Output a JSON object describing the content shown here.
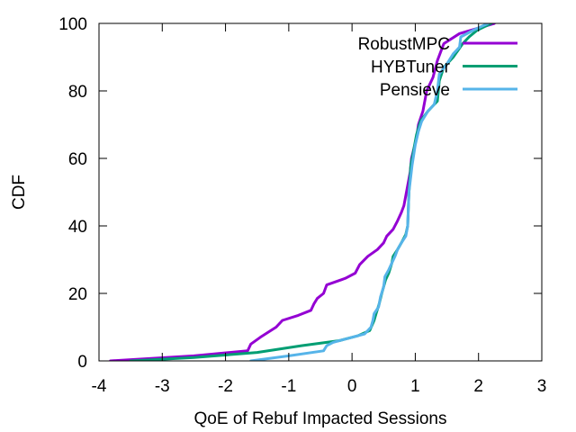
{
  "chart_data": {
    "type": "line",
    "title": "",
    "xlabel": "QoE of Rebuf Impacted Sessions",
    "ylabel": "CDF",
    "xlim": [
      -4,
      3
    ],
    "ylim": [
      0,
      100
    ],
    "x_ticks": [
      "-4",
      "-3",
      "-2",
      "-1",
      "0",
      "1",
      "2",
      "3"
    ],
    "y_ticks": [
      "0",
      "20",
      "40",
      "60",
      "80",
      "100"
    ],
    "grid": false,
    "legend_position": "top-right",
    "series": [
      {
        "name": "RobustMPC",
        "color": "#9400d3",
        "points": [
          [
            -3.82,
            0
          ],
          [
            -2.5,
            1.5
          ],
          [
            -1.65,
            3
          ],
          [
            -1.6,
            5
          ],
          [
            -1.45,
            7
          ],
          [
            -1.2,
            10
          ],
          [
            -1.1,
            12
          ],
          [
            -0.85,
            13.5
          ],
          [
            -0.65,
            15
          ],
          [
            -0.6,
            17
          ],
          [
            -0.55,
            18.5
          ],
          [
            -0.45,
            20
          ],
          [
            -0.4,
            22.5
          ],
          [
            -0.1,
            24.5
          ],
          [
            0.05,
            26
          ],
          [
            0.12,
            28.5
          ],
          [
            0.25,
            31
          ],
          [
            0.4,
            33
          ],
          [
            0.5,
            35
          ],
          [
            0.55,
            37
          ],
          [
            0.65,
            39
          ],
          [
            0.72,
            41.5
          ],
          [
            0.78,
            44
          ],
          [
            0.82,
            46
          ],
          [
            0.85,
            49
          ],
          [
            0.88,
            52
          ],
          [
            0.92,
            56
          ],
          [
            0.94,
            60
          ],
          [
            0.98,
            63
          ],
          [
            1.02,
            66
          ],
          [
            1.05,
            70
          ],
          [
            1.12,
            74
          ],
          [
            1.18,
            80
          ],
          [
            1.28,
            84
          ],
          [
            1.35,
            89
          ],
          [
            1.45,
            94
          ],
          [
            1.7,
            97
          ],
          [
            2.25,
            100
          ]
        ]
      },
      {
        "name": "HYBTuner",
        "color": "#009e73",
        "points": [
          [
            -3.5,
            0
          ],
          [
            -2.5,
            1
          ],
          [
            -1.5,
            2.5
          ],
          [
            -0.8,
            4.5
          ],
          [
            -0.2,
            6
          ],
          [
            0.1,
            7.5
          ],
          [
            0.28,
            9
          ],
          [
            0.35,
            12
          ],
          [
            0.38,
            14
          ],
          [
            0.43,
            17
          ],
          [
            0.47,
            20
          ],
          [
            0.5,
            22
          ],
          [
            0.53,
            24
          ],
          [
            0.58,
            26
          ],
          [
            0.63,
            29
          ],
          [
            0.65,
            31
          ],
          [
            0.72,
            33
          ],
          [
            0.78,
            35
          ],
          [
            0.85,
            37.5
          ],
          [
            0.88,
            40
          ],
          [
            0.9,
            50
          ],
          [
            0.93,
            58
          ],
          [
            0.98,
            63
          ],
          [
            1.02,
            67
          ],
          [
            1.08,
            71
          ],
          [
            1.2,
            74
          ],
          [
            1.35,
            77
          ],
          [
            1.38,
            83
          ],
          [
            1.45,
            87
          ],
          [
            1.6,
            90
          ],
          [
            1.75,
            94
          ],
          [
            1.85,
            96
          ],
          [
            1.98,
            98
          ],
          [
            2.2,
            100
          ]
        ]
      },
      {
        "name": "Pensieve",
        "color": "#56b4e9",
        "points": [
          [
            -1.6,
            0
          ],
          [
            -1.0,
            1.5
          ],
          [
            -0.45,
            3
          ],
          [
            -0.4,
            4.5
          ],
          [
            -0.3,
            5.5
          ],
          [
            0.0,
            7
          ],
          [
            0.2,
            8
          ],
          [
            0.3,
            10
          ],
          [
            0.33,
            12
          ],
          [
            0.35,
            14
          ],
          [
            0.42,
            16
          ],
          [
            0.45,
            19
          ],
          [
            0.5,
            22
          ],
          [
            0.52,
            25
          ],
          [
            0.58,
            27
          ],
          [
            0.63,
            29
          ],
          [
            0.68,
            31
          ],
          [
            0.72,
            33
          ],
          [
            0.78,
            35
          ],
          [
            0.85,
            37
          ],
          [
            0.88,
            40
          ],
          [
            0.9,
            50
          ],
          [
            0.95,
            58
          ],
          [
            1.0,
            64
          ],
          [
            1.05,
            68
          ],
          [
            1.1,
            71
          ],
          [
            1.2,
            74
          ],
          [
            1.3,
            76
          ],
          [
            1.35,
            80
          ],
          [
            1.38,
            85
          ],
          [
            1.5,
            88
          ],
          [
            1.6,
            91
          ],
          [
            1.7,
            93
          ],
          [
            1.72,
            96
          ],
          [
            1.92,
            98
          ],
          [
            2.15,
            100
          ]
        ]
      }
    ]
  }
}
